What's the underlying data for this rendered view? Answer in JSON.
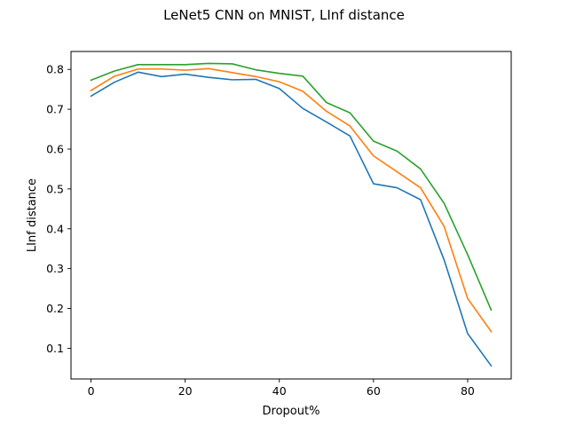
{
  "chart_data": {
    "type": "line",
    "title": "LeNet5 CNN on MNIST, LInf distance",
    "xlabel": "Dropout%",
    "ylabel": "LInf distance",
    "xlim": [
      -4.25,
      89.25
    ],
    "ylim": [
      0.023,
      0.845
    ],
    "xticks": [
      0,
      20,
      40,
      60,
      80
    ],
    "yticks": [
      0.1,
      0.2,
      0.3,
      0.4,
      0.5,
      0.6,
      0.7,
      0.8
    ],
    "grid": false,
    "x": [
      0,
      5,
      10,
      15,
      20,
      25,
      30,
      35,
      40,
      45,
      50,
      55,
      60,
      65,
      70,
      75,
      80,
      85
    ],
    "series": [
      {
        "color": "#1f77b4",
        "values": [
          0.733,
          0.768,
          0.793,
          0.782,
          0.788,
          0.78,
          0.774,
          0.775,
          0.752,
          0.702,
          0.668,
          0.633,
          0.513,
          0.503,
          0.473,
          0.322,
          0.137,
          0.056
        ]
      },
      {
        "color": "#ff7f0e",
        "values": [
          0.747,
          0.783,
          0.801,
          0.801,
          0.798,
          0.802,
          0.792,
          0.782,
          0.769,
          0.745,
          0.695,
          0.658,
          0.583,
          0.543,
          0.503,
          0.406,
          0.225,
          0.142
        ]
      },
      {
        "color": "#2ca02c",
        "values": [
          0.773,
          0.796,
          0.812,
          0.812,
          0.812,
          0.815,
          0.814,
          0.799,
          0.79,
          0.783,
          0.717,
          0.691,
          0.62,
          0.595,
          0.55,
          0.464,
          0.335,
          0.196
        ]
      }
    ]
  }
}
